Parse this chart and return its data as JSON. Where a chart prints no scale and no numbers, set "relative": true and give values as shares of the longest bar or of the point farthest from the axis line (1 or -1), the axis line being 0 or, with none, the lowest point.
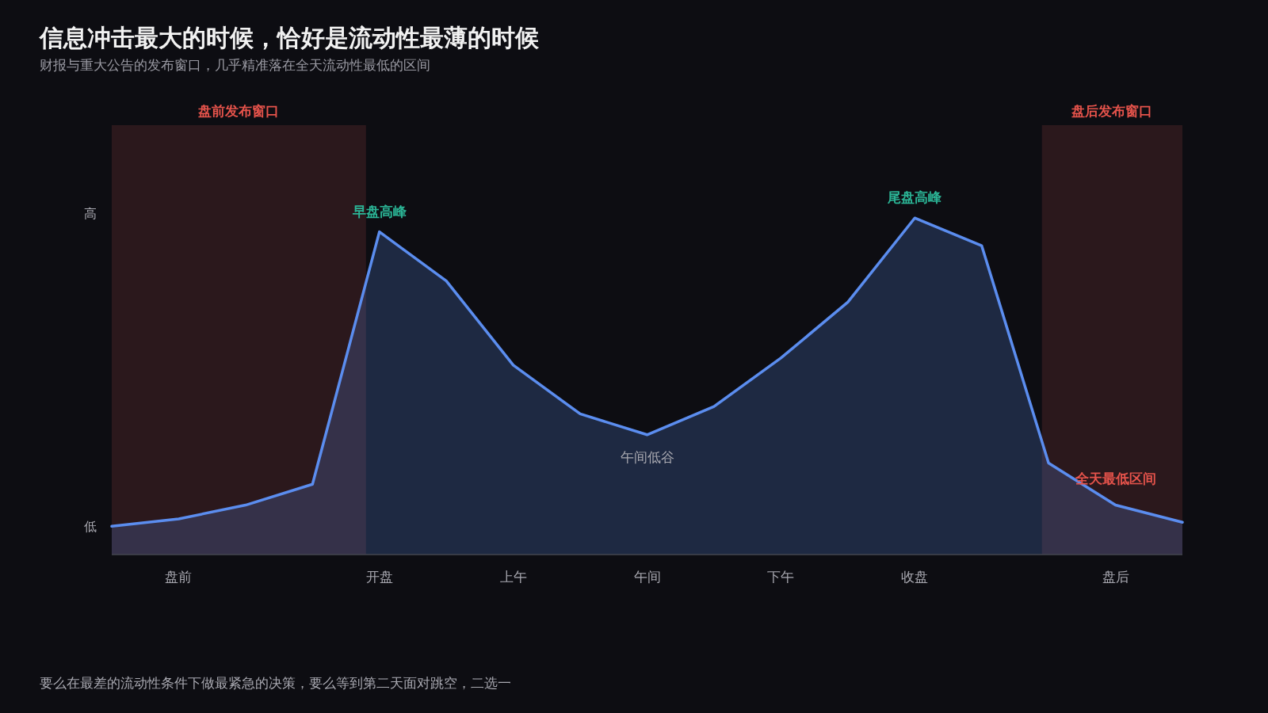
{
  "chart_data": {
    "type": "area",
    "title": "信息冲击最大的时候，恰好是流动性最薄的时候",
    "subtitle": "财报与重大公告的发布窗口，几乎精准落在全天流动性最低的区间",
    "relative": true,
    "categories": [
      null,
      "盘前",
      null,
      null,
      "开盘",
      null,
      "上午",
      null,
      "午间",
      null,
      "下午",
      null,
      "收盘",
      null,
      null,
      "盘后",
      null
    ],
    "series": [
      {
        "color": "#5b8def",
        "values": [
          0.084,
          0.106,
          0.147,
          0.209,
          0.959,
          0.813,
          0.563,
          0.418,
          0.356,
          0.44,
          0.584,
          0.75,
          1,
          0.918,
          0.272,
          0.147,
          0.096
        ]
      }
    ],
    "annotations": [
      "要么在最差的流动性条件下做最紧急的决策，要么等到第二天面对跳空，二选一",
      "高",
      "低",
      "盘前发布窗口",
      "盘后发布窗口",
      {
        "text": "早盘高峰",
        "x": "开盘",
        "y": 0.959
      },
      {
        "text": "尾盘高峰",
        "x": "收盘",
        "y": 1
      },
      {
        "text": "午间低谷",
        "x": "午间",
        "y": 0.356
      },
      {
        "text": "全天最低区间",
        "x": "盘后",
        "y": 0.147
      }
    ]
  }
}
